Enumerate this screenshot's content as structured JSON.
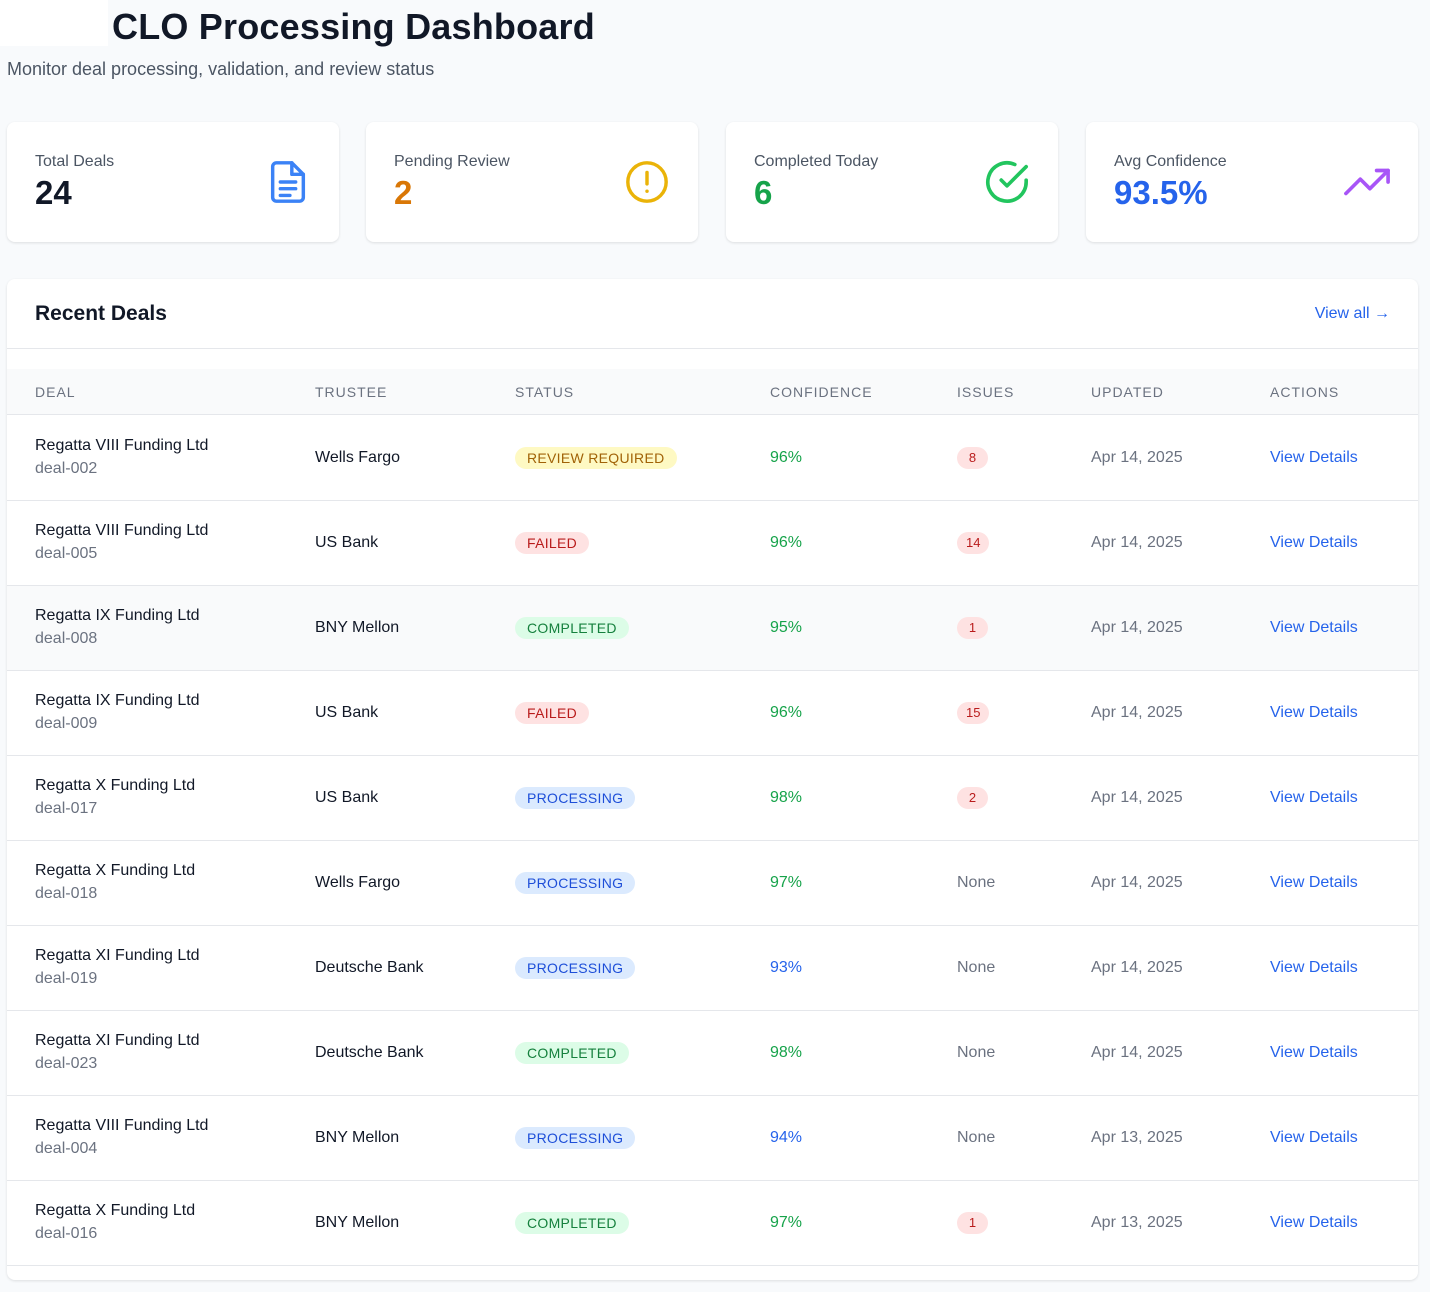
{
  "header": {
    "title": "CLO Processing Dashboard",
    "subtitle": "Monitor deal processing, validation, and review status"
  },
  "stats": [
    {
      "label": "Total Deals",
      "value": "24",
      "color": "#111827",
      "icon": "document-icon",
      "icon_color": "#3b82f6"
    },
    {
      "label": "Pending Review",
      "value": "2",
      "color": "#d97706",
      "icon": "alert-circle-icon",
      "icon_color": "#eab308"
    },
    {
      "label": "Completed Today",
      "value": "6",
      "color": "#16a34a",
      "icon": "check-circle-icon",
      "icon_color": "#22c55e"
    },
    {
      "label": "Avg Confidence",
      "value": "93.5%",
      "color": "#2563eb",
      "icon": "trending-up-icon",
      "icon_color": "#a855f7"
    }
  ],
  "recent": {
    "title": "Recent Deals",
    "view_all": "View all →",
    "columns": [
      "DEAL",
      "TRUSTEE",
      "STATUS",
      "CONFIDENCE",
      "ISSUES",
      "UPDATED",
      "ACTIONS"
    ],
    "rows": [
      {
        "name": "Regatta VIII Funding Ltd",
        "id": "deal-002",
        "trustee": "Wells Fargo",
        "status": "REVIEW REQUIRED",
        "confidence": "96%",
        "issues": "8",
        "updated": "Apr 14, 2025",
        "action": "View Details"
      },
      {
        "name": "Regatta VIII Funding Ltd",
        "id": "deal-005",
        "trustee": "US Bank",
        "status": "FAILED",
        "confidence": "96%",
        "issues": "14",
        "updated": "Apr 14, 2025",
        "action": "View Details"
      },
      {
        "name": "Regatta IX Funding Ltd",
        "id": "deal-008",
        "trustee": "BNY Mellon",
        "status": "COMPLETED",
        "confidence": "95%",
        "issues": "1",
        "updated": "Apr 14, 2025",
        "action": "View Details"
      },
      {
        "name": "Regatta IX Funding Ltd",
        "id": "deal-009",
        "trustee": "US Bank",
        "status": "FAILED",
        "confidence": "96%",
        "issues": "15",
        "updated": "Apr 14, 2025",
        "action": "View Details"
      },
      {
        "name": "Regatta X Funding Ltd",
        "id": "deal-017",
        "trustee": "US Bank",
        "status": "PROCESSING",
        "confidence": "98%",
        "issues": "2",
        "updated": "Apr 14, 2025",
        "action": "View Details"
      },
      {
        "name": "Regatta X Funding Ltd",
        "id": "deal-018",
        "trustee": "Wells Fargo",
        "status": "PROCESSING",
        "confidence": "97%",
        "issues": "None",
        "updated": "Apr 14, 2025",
        "action": "View Details"
      },
      {
        "name": "Regatta XI Funding Ltd",
        "id": "deal-019",
        "trustee": "Deutsche Bank",
        "status": "PROCESSING",
        "confidence": "93%",
        "issues": "None",
        "updated": "Apr 14, 2025",
        "action": "View Details"
      },
      {
        "name": "Regatta XI Funding Ltd",
        "id": "deal-023",
        "trustee": "Deutsche Bank",
        "status": "COMPLETED",
        "confidence": "98%",
        "issues": "None",
        "updated": "Apr 14, 2025",
        "action": "View Details"
      },
      {
        "name": "Regatta VIII Funding Ltd",
        "id": "deal-004",
        "trustee": "BNY Mellon",
        "status": "PROCESSING",
        "confidence": "94%",
        "issues": "None",
        "updated": "Apr 13, 2025",
        "action": "View Details"
      },
      {
        "name": "Regatta X Funding Ltd",
        "id": "deal-016",
        "trustee": "BNY Mellon",
        "status": "COMPLETED",
        "confidence": "97%",
        "issues": "1",
        "updated": "Apr 13, 2025",
        "action": "View Details"
      }
    ]
  },
  "colors": {
    "accent": "#2563eb",
    "confidence_high": "#16a34a",
    "confidence_medium": "#2563eb",
    "status": {
      "REVIEW REQUIRED": {
        "bg": "#fef9c3",
        "fg": "#a16207"
      },
      "FAILED": {
        "bg": "#fee2e2",
        "fg": "#b91c1c"
      },
      "COMPLETED": {
        "bg": "#dcfce7",
        "fg": "#15803d"
      },
      "PROCESSING": {
        "bg": "#dbeafe",
        "fg": "#1d4ed8"
      }
    }
  }
}
